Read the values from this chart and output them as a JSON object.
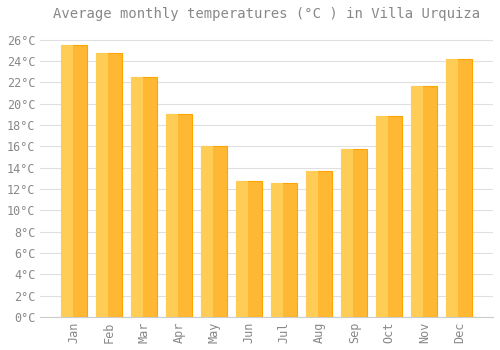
{
  "title": "Average monthly temperatures (°C ) in Villa Urquiza",
  "months": [
    "Jan",
    "Feb",
    "Mar",
    "Apr",
    "May",
    "Jun",
    "Jul",
    "Aug",
    "Sep",
    "Oct",
    "Nov",
    "Dec"
  ],
  "values": [
    25.5,
    24.8,
    22.5,
    19.0,
    16.0,
    12.7,
    12.6,
    13.7,
    15.7,
    18.8,
    21.7,
    24.2
  ],
  "bar_color": "#FFA500",
  "bar_color_light": "#FFB833",
  "background_color": "#FFFFFF",
  "grid_color": "#E0E0E0",
  "text_color": "#888888",
  "title_color": "#888888",
  "ylim": [
    0,
    27
  ],
  "ytick_step": 2,
  "title_fontsize": 10,
  "tick_fontsize": 8.5
}
